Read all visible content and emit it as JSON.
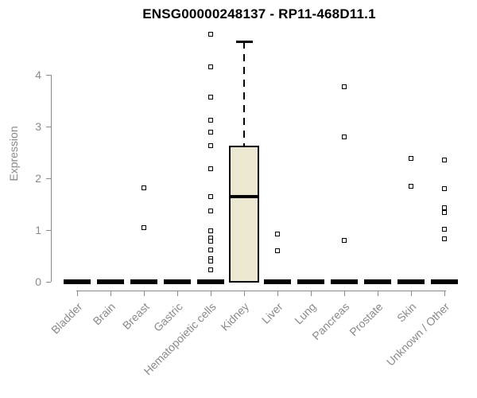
{
  "title": "ENSG00000248137 - RP11-468D11.1",
  "colors": {
    "title": "#000000",
    "axis": "#8a8a8a",
    "tick_text": "#8a8a8a",
    "box_fill": "#ece7cf",
    "box_border": "#000000",
    "median": "#000000",
    "outlier": "#000000",
    "background": "#ffffff"
  },
  "chart_data": {
    "type": "boxplot",
    "title": "ENSG00000248137 - RP11-468D11.1",
    "xlabel": "",
    "ylabel": "Expression",
    "ylim": [
      0,
      4.8
    ],
    "yticks": [
      0,
      1,
      2,
      3,
      4
    ],
    "grid": false,
    "legend": "none",
    "categories": [
      "Bladder",
      "Brain",
      "Breast",
      "Gastric",
      "Hematopoietic cells",
      "Kidney",
      "Liver",
      "Lung",
      "Pancreas",
      "Prostate",
      "Skin",
      "Unknown / Other"
    ],
    "boxes": [
      {
        "category": "Bladder",
        "collapsed": true,
        "median": 0,
        "q1": 0,
        "q3": 0
      },
      {
        "category": "Brain",
        "collapsed": true,
        "median": 0,
        "q1": 0,
        "q3": 0
      },
      {
        "category": "Breast",
        "collapsed": true,
        "median": 0,
        "q1": 0,
        "q3": 0
      },
      {
        "category": "Gastric",
        "collapsed": true,
        "median": 0,
        "q1": 0,
        "q3": 0
      },
      {
        "category": "Hematopoietic cells",
        "collapsed": true,
        "median": 0,
        "q1": 0,
        "q3": 0
      },
      {
        "category": "Kidney",
        "collapsed": false,
        "q1": 0,
        "median": 1.65,
        "q3": 2.63,
        "whisker_high": 4.65
      },
      {
        "category": "Liver",
        "collapsed": true,
        "median": 0,
        "q1": 0,
        "q3": 0
      },
      {
        "category": "Lung",
        "collapsed": true,
        "median": 0,
        "q1": 0,
        "q3": 0
      },
      {
        "category": "Pancreas",
        "collapsed": true,
        "median": 0,
        "q1": 0,
        "q3": 0
      },
      {
        "category": "Prostate",
        "collapsed": true,
        "median": 0,
        "q1": 0,
        "q3": 0
      },
      {
        "category": "Skin",
        "collapsed": true,
        "median": 0,
        "q1": 0,
        "q3": 0
      },
      {
        "category": "Unknown / Other",
        "collapsed": true,
        "median": 0,
        "q1": 0,
        "q3": 0
      }
    ],
    "outliers": [
      {
        "category": "Breast",
        "values": [
          1.82,
          1.05
        ]
      },
      {
        "category": "Hematopoietic cells",
        "values": [
          4.78,
          4.15,
          3.57,
          3.12,
          2.89,
          2.63,
          2.18,
          1.65,
          1.37,
          0.98,
          0.85,
          0.78,
          0.62,
          0.45,
          0.4,
          0.23
        ]
      },
      {
        "category": "Liver",
        "values": [
          0.93,
          0.6
        ]
      },
      {
        "category": "Pancreas",
        "values": [
          3.77,
          2.8,
          0.8
        ]
      },
      {
        "category": "Skin",
        "values": [
          2.38,
          1.85
        ]
      },
      {
        "category": "Unknown / Other",
        "values": [
          2.35,
          1.8,
          1.43,
          1.34,
          1.02,
          0.83
        ]
      }
    ]
  }
}
